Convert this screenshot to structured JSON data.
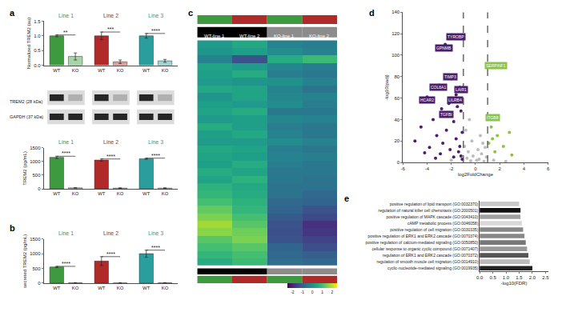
{
  "panel_labels": [
    "a",
    "b",
    "c",
    "d",
    "e"
  ],
  "blot": {
    "bands": [
      "TREM2 (28 kDa)",
      "GAPDH (37 kDa)"
    ]
  },
  "chart_data": [
    {
      "type": "bar",
      "ylabel": "Normalized TREM2 (au)",
      "ylim": [
        0,
        1.5
      ],
      "yticks": [
        {
          "value": 0,
          "label": "0.0"
        },
        {
          "value": 0.5,
          "label": "0.5"
        },
        {
          "value": 1,
          "label": "1.0"
        },
        {
          "value": 1.5,
          "label": "1.5"
        }
      ],
      "series": [
        {
          "name": "Line 1",
          "color": "#3e9a3e",
          "colors": [
            "#3e9a3e",
            "#a6d5a6"
          ],
          "categories": [
            "WT",
            "KO"
          ],
          "values": [
            1.0,
            0.3
          ],
          "errors": [
            0.03,
            0.12
          ],
          "significance": "**"
        },
        {
          "name": "Line 2",
          "color": "#b02a2a",
          "colors": [
            "#b02a2a",
            "#e09a9a"
          ],
          "categories": [
            "WT",
            "KO"
          ],
          "values": [
            1.0,
            0.12
          ],
          "errors": [
            0.13,
            0.06
          ],
          "significance": "***"
        },
        {
          "name": "Line 3",
          "color": "#2a9d9d",
          "colors": [
            "#2a9d9d",
            "#9fd4d4"
          ],
          "categories": [
            "WT",
            "KO"
          ],
          "values": [
            1.0,
            0.15
          ],
          "errors": [
            0.08,
            0.05
          ],
          "significance": "****"
        }
      ]
    },
    {
      "type": "bar",
      "ylabel": "TREM2 (pg/mL)",
      "ylim": [
        0,
        1500
      ],
      "yticks": [
        0,
        500,
        1000,
        1500
      ],
      "series": [
        {
          "name": "Line 1",
          "color": "#3e9a3e",
          "colors": [
            "#3e9a3e",
            "#a6d5a6"
          ],
          "categories": [
            "WT",
            "KO"
          ],
          "values": [
            1150,
            40
          ],
          "errors": [
            40,
            10
          ],
          "significance": "****"
        },
        {
          "name": "Line 2",
          "color": "#b02a2a",
          "colors": [
            "#b02a2a",
            "#e09a9a"
          ],
          "categories": [
            "WT",
            "KO"
          ],
          "values": [
            1050,
            30
          ],
          "errors": [
            40,
            10
          ],
          "significance": "****"
        },
        {
          "name": "Line 3",
          "color": "#2a9d9d",
          "colors": [
            "#2a9d9d",
            "#9fd4d4"
          ],
          "categories": [
            "WT",
            "KO"
          ],
          "values": [
            1100,
            30
          ],
          "errors": [
            20,
            10
          ],
          "significance": "****"
        }
      ]
    },
    {
      "type": "bar",
      "ylabel": "secreted TREM2 (pg/mL)",
      "ylim": [
        0,
        1500
      ],
      "yticks": [
        0,
        500,
        1000,
        1500
      ],
      "series": [
        {
          "name": "Line 1",
          "color": "#3e9a3e",
          "colors": [
            "#3e9a3e",
            "#a6d5a6"
          ],
          "categories": [
            "WT",
            "KO"
          ],
          "values": [
            550,
            10
          ],
          "errors": [
            20,
            5
          ],
          "significance": "****"
        },
        {
          "name": "Line 2",
          "color": "#b02a2a",
          "colors": [
            "#b02a2a",
            "#e09a9a"
          ],
          "categories": [
            "WT",
            "KO"
          ],
          "values": [
            750,
            5
          ],
          "errors": [
            150,
            5
          ],
          "significance": "****"
        },
        {
          "name": "Line 3",
          "color": "#2a9d9d",
          "colors": [
            "#2a9d9d",
            "#9fd4d4"
          ],
          "categories": [
            "WT",
            "KO"
          ],
          "values": [
            1000,
            10
          ],
          "errors": [
            120,
            5
          ],
          "significance": "****"
        }
      ]
    },
    {
      "type": "heatmap",
      "columns": [
        {
          "label": "WT-line 1",
          "color": "#3e9a3e",
          "group_color": "#000000"
        },
        {
          "label": "WT-line 2",
          "color": "#b02a2a",
          "group_color": "#000000"
        },
        {
          "label": "KO-line 1",
          "color": "#3e9a3e",
          "group_color": "#8c8c8c"
        },
        {
          "label": "KO-line 2",
          "color": "#b02a2a",
          "group_color": "#8c8c8c"
        }
      ],
      "cells": [
        [
          0.2,
          0.5,
          -0.3,
          -0.4
        ],
        [
          0.1,
          0.3,
          -0.1,
          -0.3
        ],
        [
          -0.3,
          -1.2,
          0.6,
          0.9
        ],
        [
          0.4,
          0.2,
          -0.2,
          -0.4
        ],
        [
          0.3,
          0.6,
          -0.4,
          -0.5
        ],
        [
          0.2,
          0.1,
          0.0,
          -0.3
        ],
        [
          0.5,
          0.4,
          -0.3,
          -0.6
        ],
        [
          0.1,
          0.4,
          -0.2,
          -0.3
        ],
        [
          0.3,
          0.2,
          -0.1,
          -0.4
        ],
        [
          0.4,
          0.6,
          -0.5,
          -0.5
        ],
        [
          0.2,
          0.3,
          -0.2,
          -0.3
        ],
        [
          0.6,
          0.3,
          -0.4,
          -0.5
        ],
        [
          0.3,
          0.5,
          -0.3,
          -0.5
        ],
        [
          0.2,
          0.2,
          -0.1,
          -0.3
        ],
        [
          0.5,
          0.4,
          -0.4,
          -0.5
        ],
        [
          0.4,
          0.3,
          -0.3,
          -0.4
        ],
        [
          0.3,
          0.6,
          -0.4,
          -0.5
        ],
        [
          0.6,
          0.4,
          -0.5,
          -0.5
        ],
        [
          0.4,
          0.7,
          -0.5,
          -0.6
        ],
        [
          0.7,
          0.5,
          -0.6,
          -0.6
        ],
        [
          0.8,
          0.6,
          -0.6,
          -0.8
        ],
        [
          1.0,
          0.7,
          -0.8,
          -0.9
        ],
        [
          1.3,
          0.8,
          -0.9,
          -1.2
        ],
        [
          1.5,
          1.0,
          -1.1,
          -1.4
        ],
        [
          1.8,
          1.2,
          -1.2,
          -1.8
        ],
        [
          1.6,
          1.4,
          -1.3,
          -1.7
        ],
        [
          1.2,
          1.5,
          -1.2,
          -1.5
        ],
        [
          1.0,
          1.2,
          -0.9,
          -1.3
        ],
        [
          0.8,
          1.0,
          -0.8,
          -1.0
        ],
        [
          0.6,
          0.9,
          -0.7,
          -0.8
        ]
      ],
      "colorbar_range": [
        -2.5,
        2.5
      ],
      "colorbar_ticks": [
        -2,
        -1,
        0,
        1,
        2
      ]
    },
    {
      "type": "scatter",
      "xlabel": "log2FoldChange",
      "ylabel": "-log10(padj)",
      "xlim": [
        -6,
        6
      ],
      "xticks": [
        -6,
        -4,
        -2,
        0,
        2,
        4,
        6
      ],
      "ylim": [
        0,
        140
      ],
      "yticks": [
        0,
        20,
        40,
        60,
        80,
        100,
        120,
        140
      ],
      "thresholds": [
        -1,
        1
      ],
      "series": [
        {
          "color": "#bdbdbd",
          "x": [
            -0.5,
            -0.8,
            0.4,
            -0.3,
            0.6,
            -0.9,
            0.8,
            0.2,
            -0.6,
            0.5,
            -0.2,
            0.9,
            -0.7,
            0.3,
            0.1,
            -0.4,
            0.7,
            1.5,
            -2,
            2.5
          ],
          "y": [
            40,
            30,
            25,
            20,
            18,
            15,
            14,
            12,
            10,
            8,
            6,
            5,
            4,
            3,
            2,
            1.5,
            1,
            2,
            2,
            1
          ]
        },
        {
          "color": "#4b1e6b",
          "x": [
            -1.7,
            -2.5,
            -2.0,
            -3.0,
            -1.3,
            -1.6,
            -4.0,
            -2.2,
            -1.5,
            -2.8,
            -1.2,
            -3.5,
            -1.8,
            -4.5,
            -2.4,
            -1.1,
            -3.2,
            -1.6,
            -5.0,
            -2.7,
            -1.3,
            -3.8,
            -2.1,
            -1.4,
            -4.2,
            -2.9,
            -1.2,
            -1.8,
            -3.3,
            -1.1
          ],
          "y": [
            118,
            110,
            78,
            72,
            70,
            63,
            61,
            55,
            52,
            50,
            48,
            40,
            38,
            33,
            30,
            28,
            25,
            22,
            20,
            18,
            15,
            14,
            12,
            10,
            9,
            8,
            6,
            5,
            4,
            3
          ]
        },
        {
          "color": "#8bc34a",
          "x": [
            1.5,
            1.2,
            1.3,
            2.8,
            1.8,
            1.4,
            1.1,
            2.3,
            1.6,
            3.0
          ],
          "y": [
            90,
            42,
            33,
            28,
            25,
            22,
            18,
            15,
            10,
            7
          ]
        }
      ],
      "labels": [
        {
          "text": "TYROBP",
          "x": -1.6,
          "y": 117,
          "color": "#4b1e6b"
        },
        {
          "text": "GPNMB",
          "x": -2.6,
          "y": 107,
          "color": "#4b1e6b"
        },
        {
          "text": "TIMP3",
          "x": -2.1,
          "y": 80,
          "color": "#4b1e6b"
        },
        {
          "text": "COL6A1",
          "x": -3.1,
          "y": 70,
          "color": "#4b1e6b"
        },
        {
          "text": "LAIR1",
          "x": -1.2,
          "y": 68,
          "color": "#4b1e6b"
        },
        {
          "text": "LILRB4",
          "x": -1.7,
          "y": 58,
          "color": "#4b1e6b"
        },
        {
          "text": "HCAR2",
          "x": -4.0,
          "y": 58,
          "color": "#4b1e6b"
        },
        {
          "text": "TGFBI",
          "x": -2.4,
          "y": 45,
          "color": "#4b1e6b"
        },
        {
          "text": "SERPINF1",
          "x": 1.7,
          "y": 90,
          "color": "#8bc34a"
        },
        {
          "text": "ITGB8",
          "x": 1.4,
          "y": 42,
          "color": "#8bc34a"
        }
      ]
    },
    {
      "type": "bar",
      "orientation": "horizontal",
      "xlabel": "-log10(FDR)",
      "xlim": [
        0,
        2.6
      ],
      "xticks": [
        {
          "value": 0,
          "label": "0.0"
        },
        {
          "value": 0.5,
          "label": "0.5"
        },
        {
          "value": 1,
          "label": "1.0"
        },
        {
          "value": 1.5,
          "label": "1.5"
        },
        {
          "value": 2,
          "label": "2.0"
        },
        {
          "value": 2.5,
          "label": "2.5"
        }
      ],
      "categories": [
        "positive regulation of lipid transport (GO:0032370)",
        "regulation of natural killer cell chemotaxis (GO:2000501)",
        "positive regulation of MAPK cascade (GO:0043410)",
        "cAMP metabolic process (GO:0046058)",
        "positive regulation of cell migration (GO:0030335)",
        "positive regulation of ERK1 and ERK2 cascade (GO:0070374)",
        "positive regulation of calcium-mediated signaling (GO:0050850)",
        "cellular response to organic cyclic compound (GO:0071407)",
        "regulation of ERK1 and ERK2 cascade (GO:0070372)",
        "regulation of smooth muscle cell migration (GO:0014910)",
        "cyclic-nucleotide-mediated signaling (GO:0019935)"
      ],
      "values": [
        1.5,
        1.55,
        1.55,
        1.6,
        1.65,
        1.7,
        1.75,
        1.8,
        1.85,
        1.9,
        2.0
      ],
      "colors": [
        "#c8c8c8",
        "#111111",
        "#a0a0a0",
        "#d8d8d8",
        "#888888",
        "#888888",
        "#777777",
        "#999999",
        "#555555",
        "#bbbbbb",
        "#222222"
      ]
    }
  ]
}
